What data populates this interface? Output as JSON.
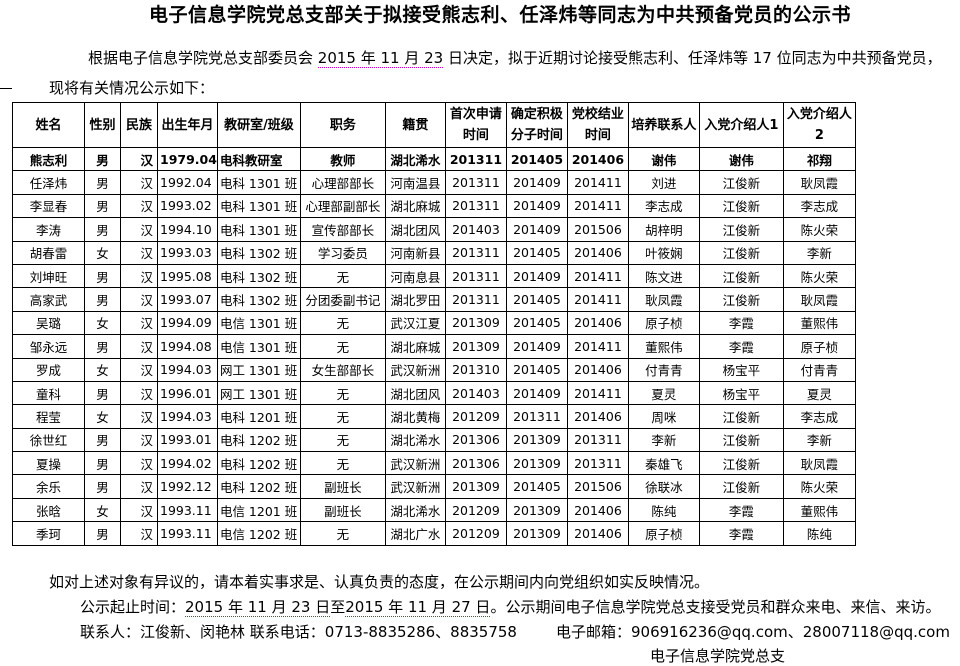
{
  "title": "电子信息学院党总支部关于拟接受熊志利、任泽炜等同志为中共预备党员的公示书",
  "intro": {
    "line1_pre": "根据电子信息学院党总支部委员会 ",
    "line1_date": "2015 年 11 月 23",
    "line1_post": " 日决定，拟于近期讨论接受熊志利、任泽炜等 17 位同志为中共预备党员，",
    "line2": "现将有关情况公示如下："
  },
  "table": {
    "headers": [
      "姓名",
      "性别",
      "民族",
      "出生年月",
      "教研室/班级",
      "职务",
      "籍贯",
      "首次申请时间",
      "确定积极分子时间",
      "党校结业时间",
      "培养联系人",
      "入党介绍人1",
      "入党介绍人2"
    ],
    "rows": [
      [
        "熊志利",
        "男",
        "汉",
        "1979.04",
        "电科教研室",
        "教师",
        "湖北浠水",
        "201311",
        "201405",
        "201406",
        "谢伟",
        "谢伟",
        "祁翔"
      ],
      [
        "任泽炜",
        "男",
        "汉",
        "1992.04",
        "电科 1301 班",
        "心理部部长",
        "河南温县",
        "201311",
        "201409",
        "201411",
        "刘进",
        "江俊新",
        "耿凤霞"
      ],
      [
        "李显春",
        "男",
        "汉",
        "1993.02",
        "电科 1301 班",
        "心理部副部长",
        "湖北麻城",
        "201311",
        "201409",
        "201411",
        "李志成",
        "江俊新",
        "李志成"
      ],
      [
        "李涛",
        "男",
        "汉",
        "1994.10",
        "电科 1301 班",
        "宣传部部长",
        "湖北团风",
        "201403",
        "201409",
        "201506",
        "胡梓明",
        "江俊新",
        "陈火荣"
      ],
      [
        "胡春雷",
        "女",
        "汉",
        "1993.03",
        "电科 1302 班",
        "学习委员",
        "河南新县",
        "201311",
        "201405",
        "201406",
        "叶筱娴",
        "江俊新",
        "李新"
      ],
      [
        "刘坤旺",
        "男",
        "汉",
        "1995.08",
        "电科 1302 班",
        "无",
        "河南息县",
        "201311",
        "201409",
        "201411",
        "陈文进",
        "江俊新",
        "陈火荣"
      ],
      [
        "高家武",
        "男",
        "汉",
        "1993.07",
        "电科 1302 班",
        "分团委副书记",
        "湖北罗田",
        "201311",
        "201405",
        "201411",
        "耿凤霞",
        "江俊新",
        "耿凤霞"
      ],
      [
        "吴璐",
        "女",
        "汉",
        "1994.09",
        "电信 1301 班",
        "无",
        "武汉江夏",
        "201309",
        "201405",
        "201406",
        "原子桢",
        "李霞",
        "董熙伟"
      ],
      [
        "邹永远",
        "男",
        "汉",
        "1994.08",
        "电信 1301 班",
        "无",
        "湖北麻城",
        "201309",
        "201409",
        "201411",
        "董熙伟",
        "李霞",
        "原子桢"
      ],
      [
        "罗成",
        "女",
        "汉",
        "1994.03",
        "网工 1301 班",
        "女生部部长",
        "武汉新洲",
        "201310",
        "201405",
        "201406",
        "付青青",
        "杨宝平",
        "付青青"
      ],
      [
        "童科",
        "男",
        "汉",
        "1996.01",
        "网工 1301 班",
        "无",
        "湖北团风",
        "201403",
        "201409",
        "201411",
        "夏灵",
        "杨宝平",
        "夏灵"
      ],
      [
        "程莹",
        "女",
        "汉",
        "1994.03",
        "电科 1201 班",
        "无",
        "湖北黄梅",
        "201209",
        "201311",
        "201406",
        "周咪",
        "江俊新",
        "李志成"
      ],
      [
        "徐世红",
        "男",
        "汉",
        "1993.01",
        "电科 1202 班",
        "无",
        "湖北浠水",
        "201306",
        "201309",
        "201311",
        "李新",
        "江俊新",
        "李新"
      ],
      [
        "夏操",
        "男",
        "汉",
        "1994.02",
        "电科 1202 班",
        "无",
        "武汉新洲",
        "201306",
        "201309",
        "201311",
        "秦雄飞",
        "江俊新",
        "耿凤霞"
      ],
      [
        "余乐",
        "男",
        "汉",
        "1992.12",
        "电科 1202 班",
        "副班长",
        "武汉新洲",
        "201309",
        "201405",
        "201506",
        "徐联冰",
        "江俊新",
        "陈火荣"
      ],
      [
        "张晗",
        "女",
        "汉",
        "1993.11",
        "电信 1201 班",
        "副班长",
        "湖北浠水",
        "201209",
        "201309",
        "201406",
        "陈纯",
        "李霞",
        "董熙伟"
      ],
      [
        "季珂",
        "男",
        "汉",
        "1993.11",
        "电信 1202 班",
        "无",
        "湖北广水",
        "201209",
        "201309",
        "201406",
        "原子桢",
        "李霞",
        "陈纯"
      ]
    ]
  },
  "footer": {
    "objection": "如对上述对象有异议的，请本着实事求是、认真负责的态度，在公示期间内向党组织如实反映情况。",
    "period_label": "公示起止时间：",
    "period_start": "2015 年 11 月 23 日",
    "period_mid": "至",
    "period_end": "2015 年 11 月 27 日",
    "period_post": "。公示期间电子信息学院党总支接受党员和群众来电、来信、来访。",
    "contact": "联系人：江俊新、闵艳林   联系电话：0713-8835286、8835758",
    "email": "电子邮箱：906916236@qq.com、28007118@qq.com",
    "signature": "电子信息学院党总支"
  }
}
